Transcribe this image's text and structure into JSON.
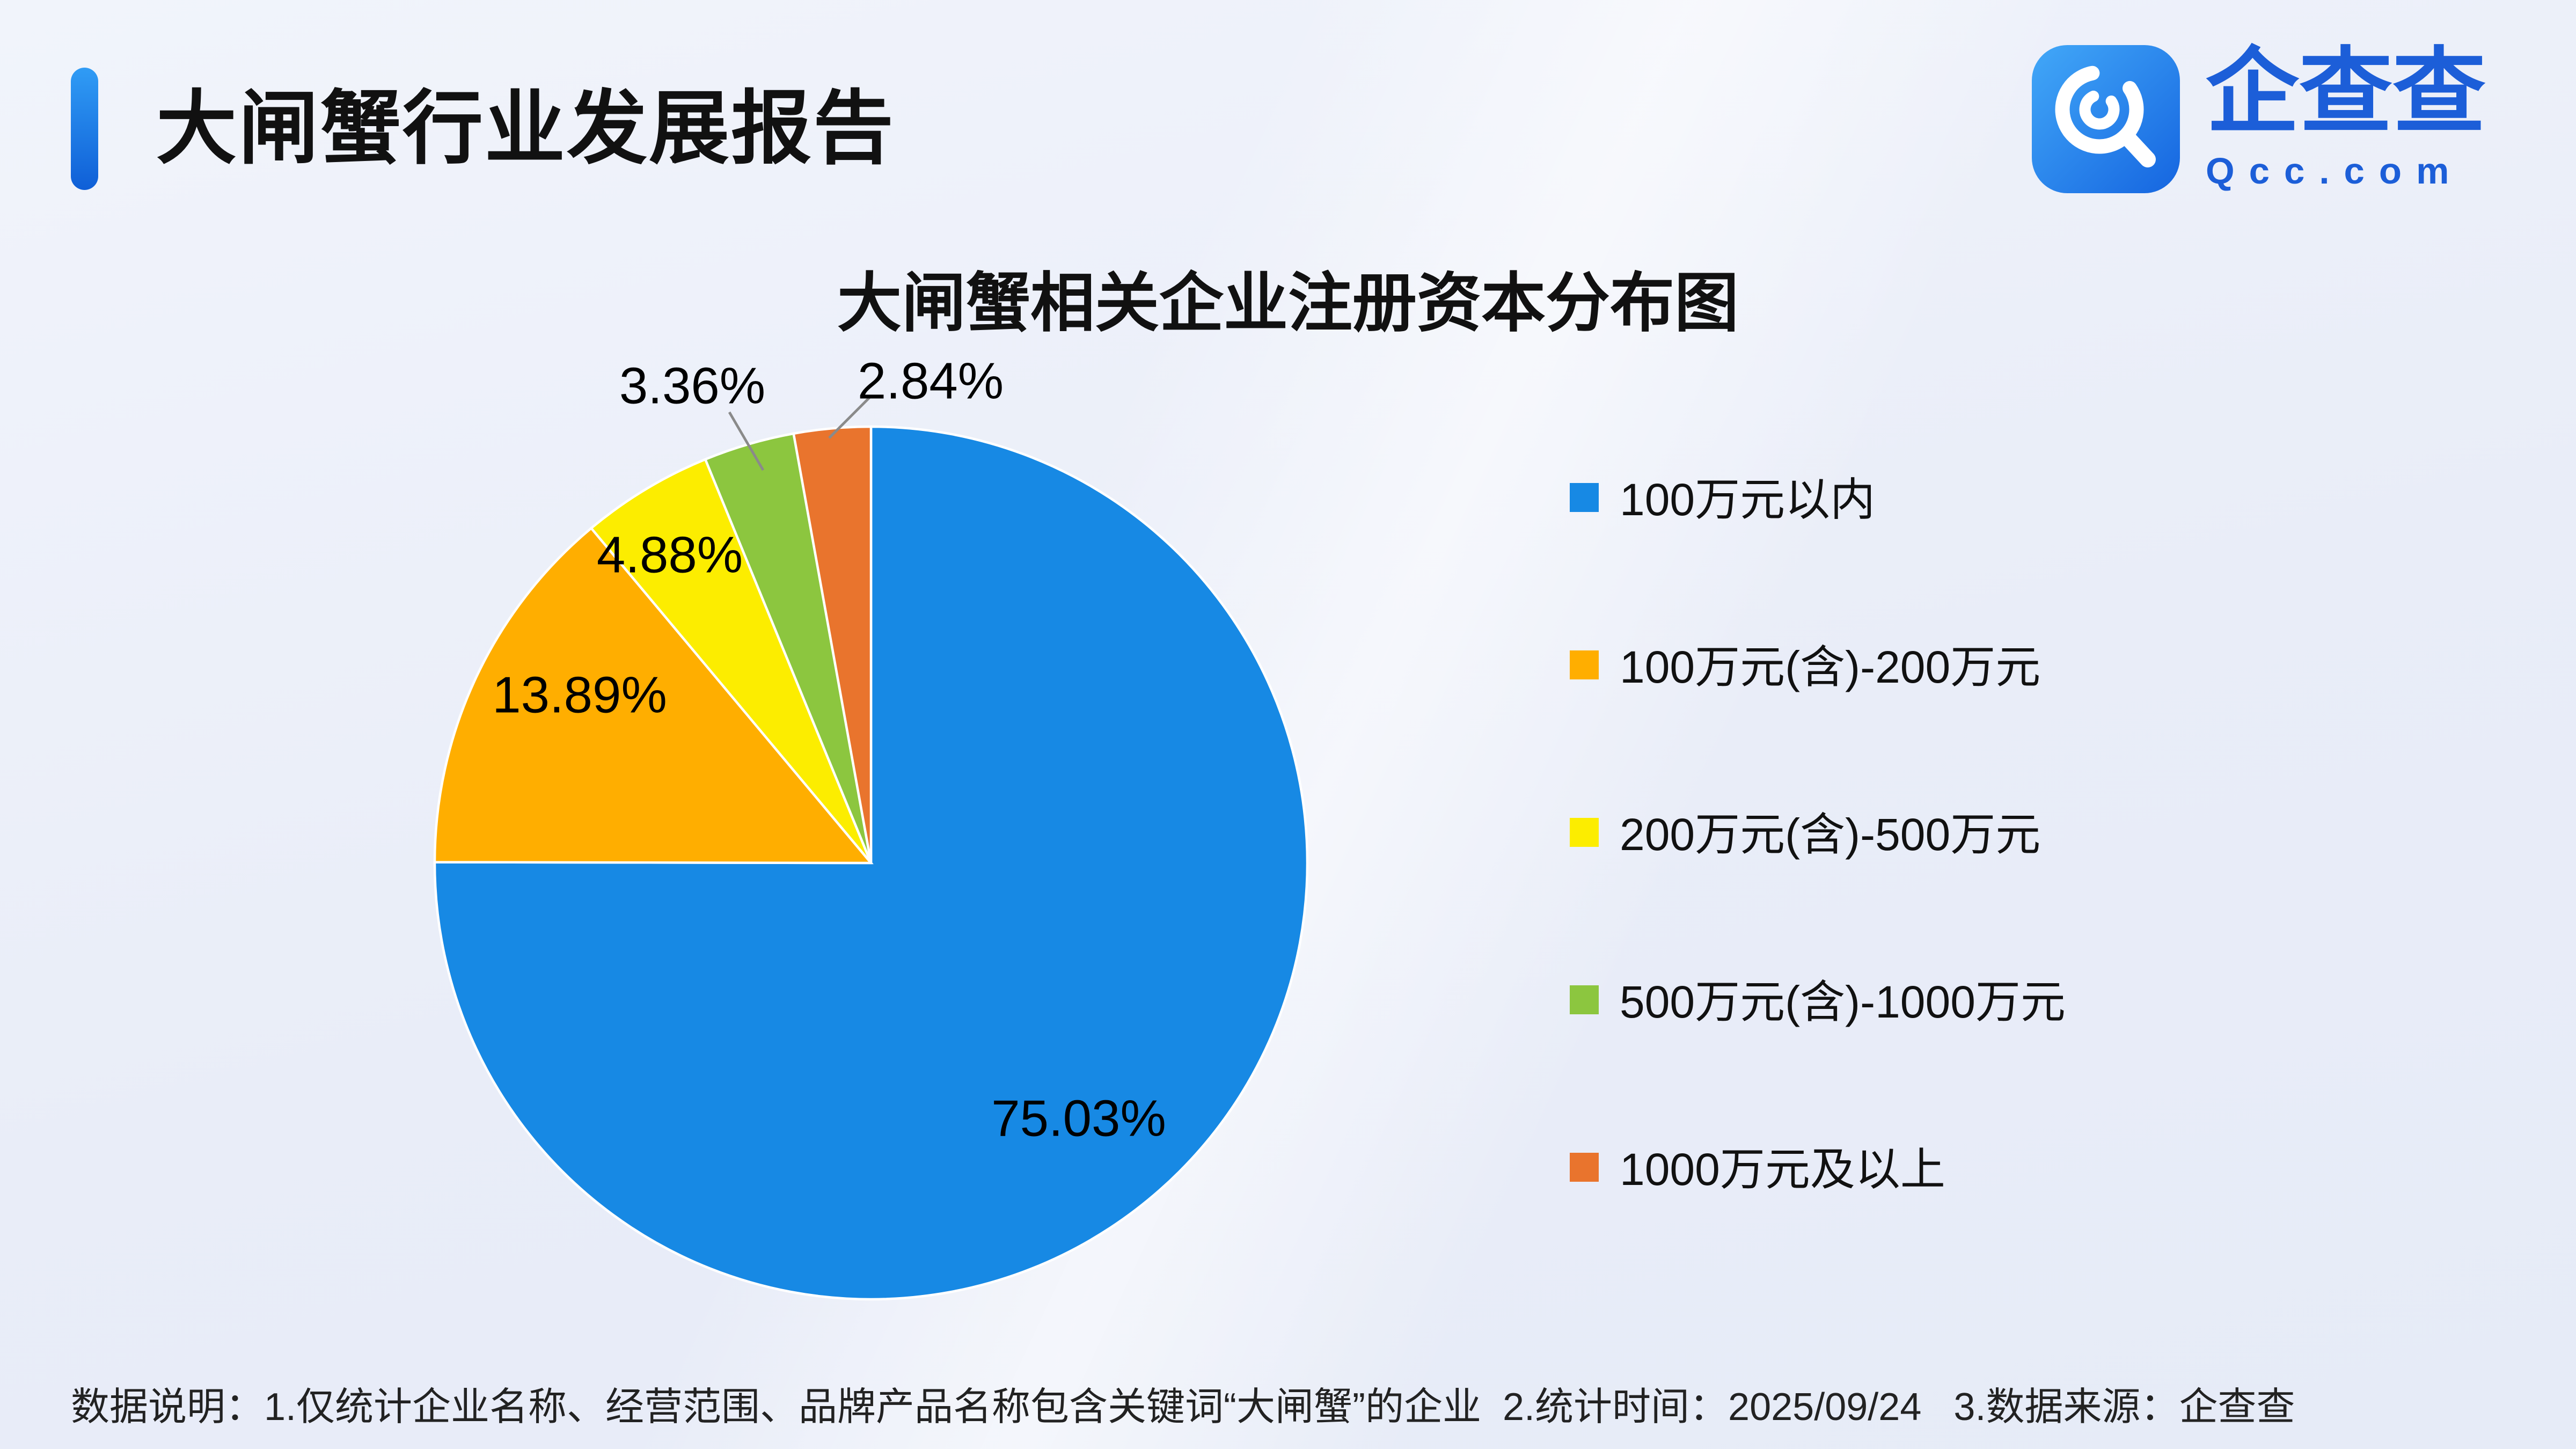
{
  "page": {
    "title": "大闸蟹行业发展报告",
    "logo": {
      "brand": "企查查",
      "domain": "Qcc.com"
    },
    "footer": "数据说明：1.仅统计企业名称、经营范围、品牌产品名称包含关键词“大闸蟹”的企业  2.统计时间：2025/09/24   3.数据来源：企查查"
  },
  "chart_data": {
    "type": "pie",
    "title": "大闸蟹相关企业注册资本分布图",
    "start_angle_deg": 0,
    "direction": "clockwise",
    "legend_position": "right",
    "slices": [
      {
        "name": "100万元以内",
        "value": 75.03,
        "label": "75.03%",
        "color": "#1789E4"
      },
      {
        "name": "100万元(含)-200万元",
        "value": 13.89,
        "label": "13.89%",
        "color": "#FFAE00"
      },
      {
        "name": "200万元(含)-500万元",
        "value": 4.88,
        "label": "4.88%",
        "color": "#FCED00"
      },
      {
        "name": "500万元(含)-1000万元",
        "value": 3.36,
        "label": "3.36%",
        "color": "#8CC63F"
      },
      {
        "name": "1000万元及以上",
        "value": 2.84,
        "label": "2.84%",
        "color": "#E9742D"
      }
    ]
  }
}
